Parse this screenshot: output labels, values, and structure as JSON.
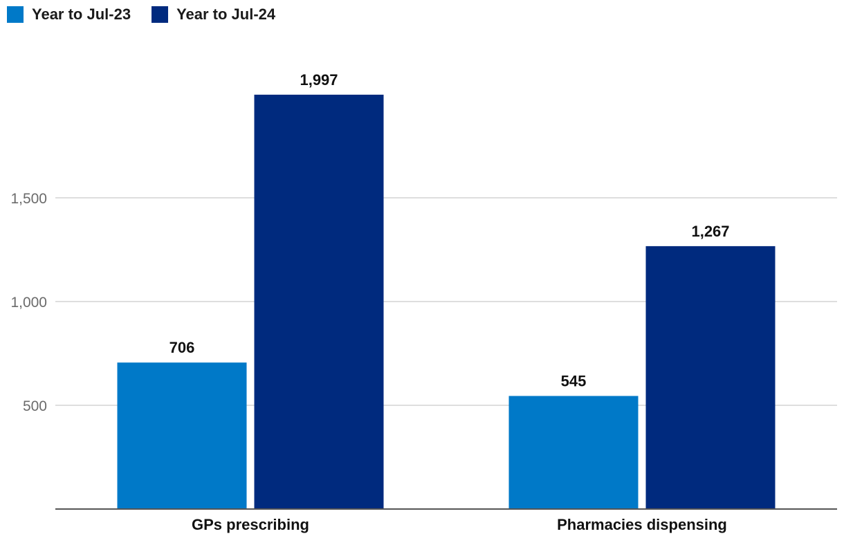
{
  "chart_data": {
    "type": "bar",
    "categories": [
      "GPs prescribing",
      "Pharmacies dispensing"
    ],
    "series": [
      {
        "name": "Year to Jul-23",
        "values": [
          706,
          545
        ],
        "color": "#0079c8"
      },
      {
        "name": "Year to Jul-24",
        "values": [
          1997,
          1267
        ],
        "color": "#002a7e"
      }
    ],
    "data_labels": [
      [
        "706",
        "545"
      ],
      [
        "1,997",
        "1,267"
      ]
    ],
    "ylim": [
      0,
      2000
    ],
    "yticks": [
      500,
      1000,
      1500
    ],
    "ytick_labels": [
      "500",
      "1,000",
      "1,500"
    ],
    "grid": true,
    "legend_position": "top-left",
    "title": "",
    "xlabel": "",
    "ylabel": ""
  }
}
